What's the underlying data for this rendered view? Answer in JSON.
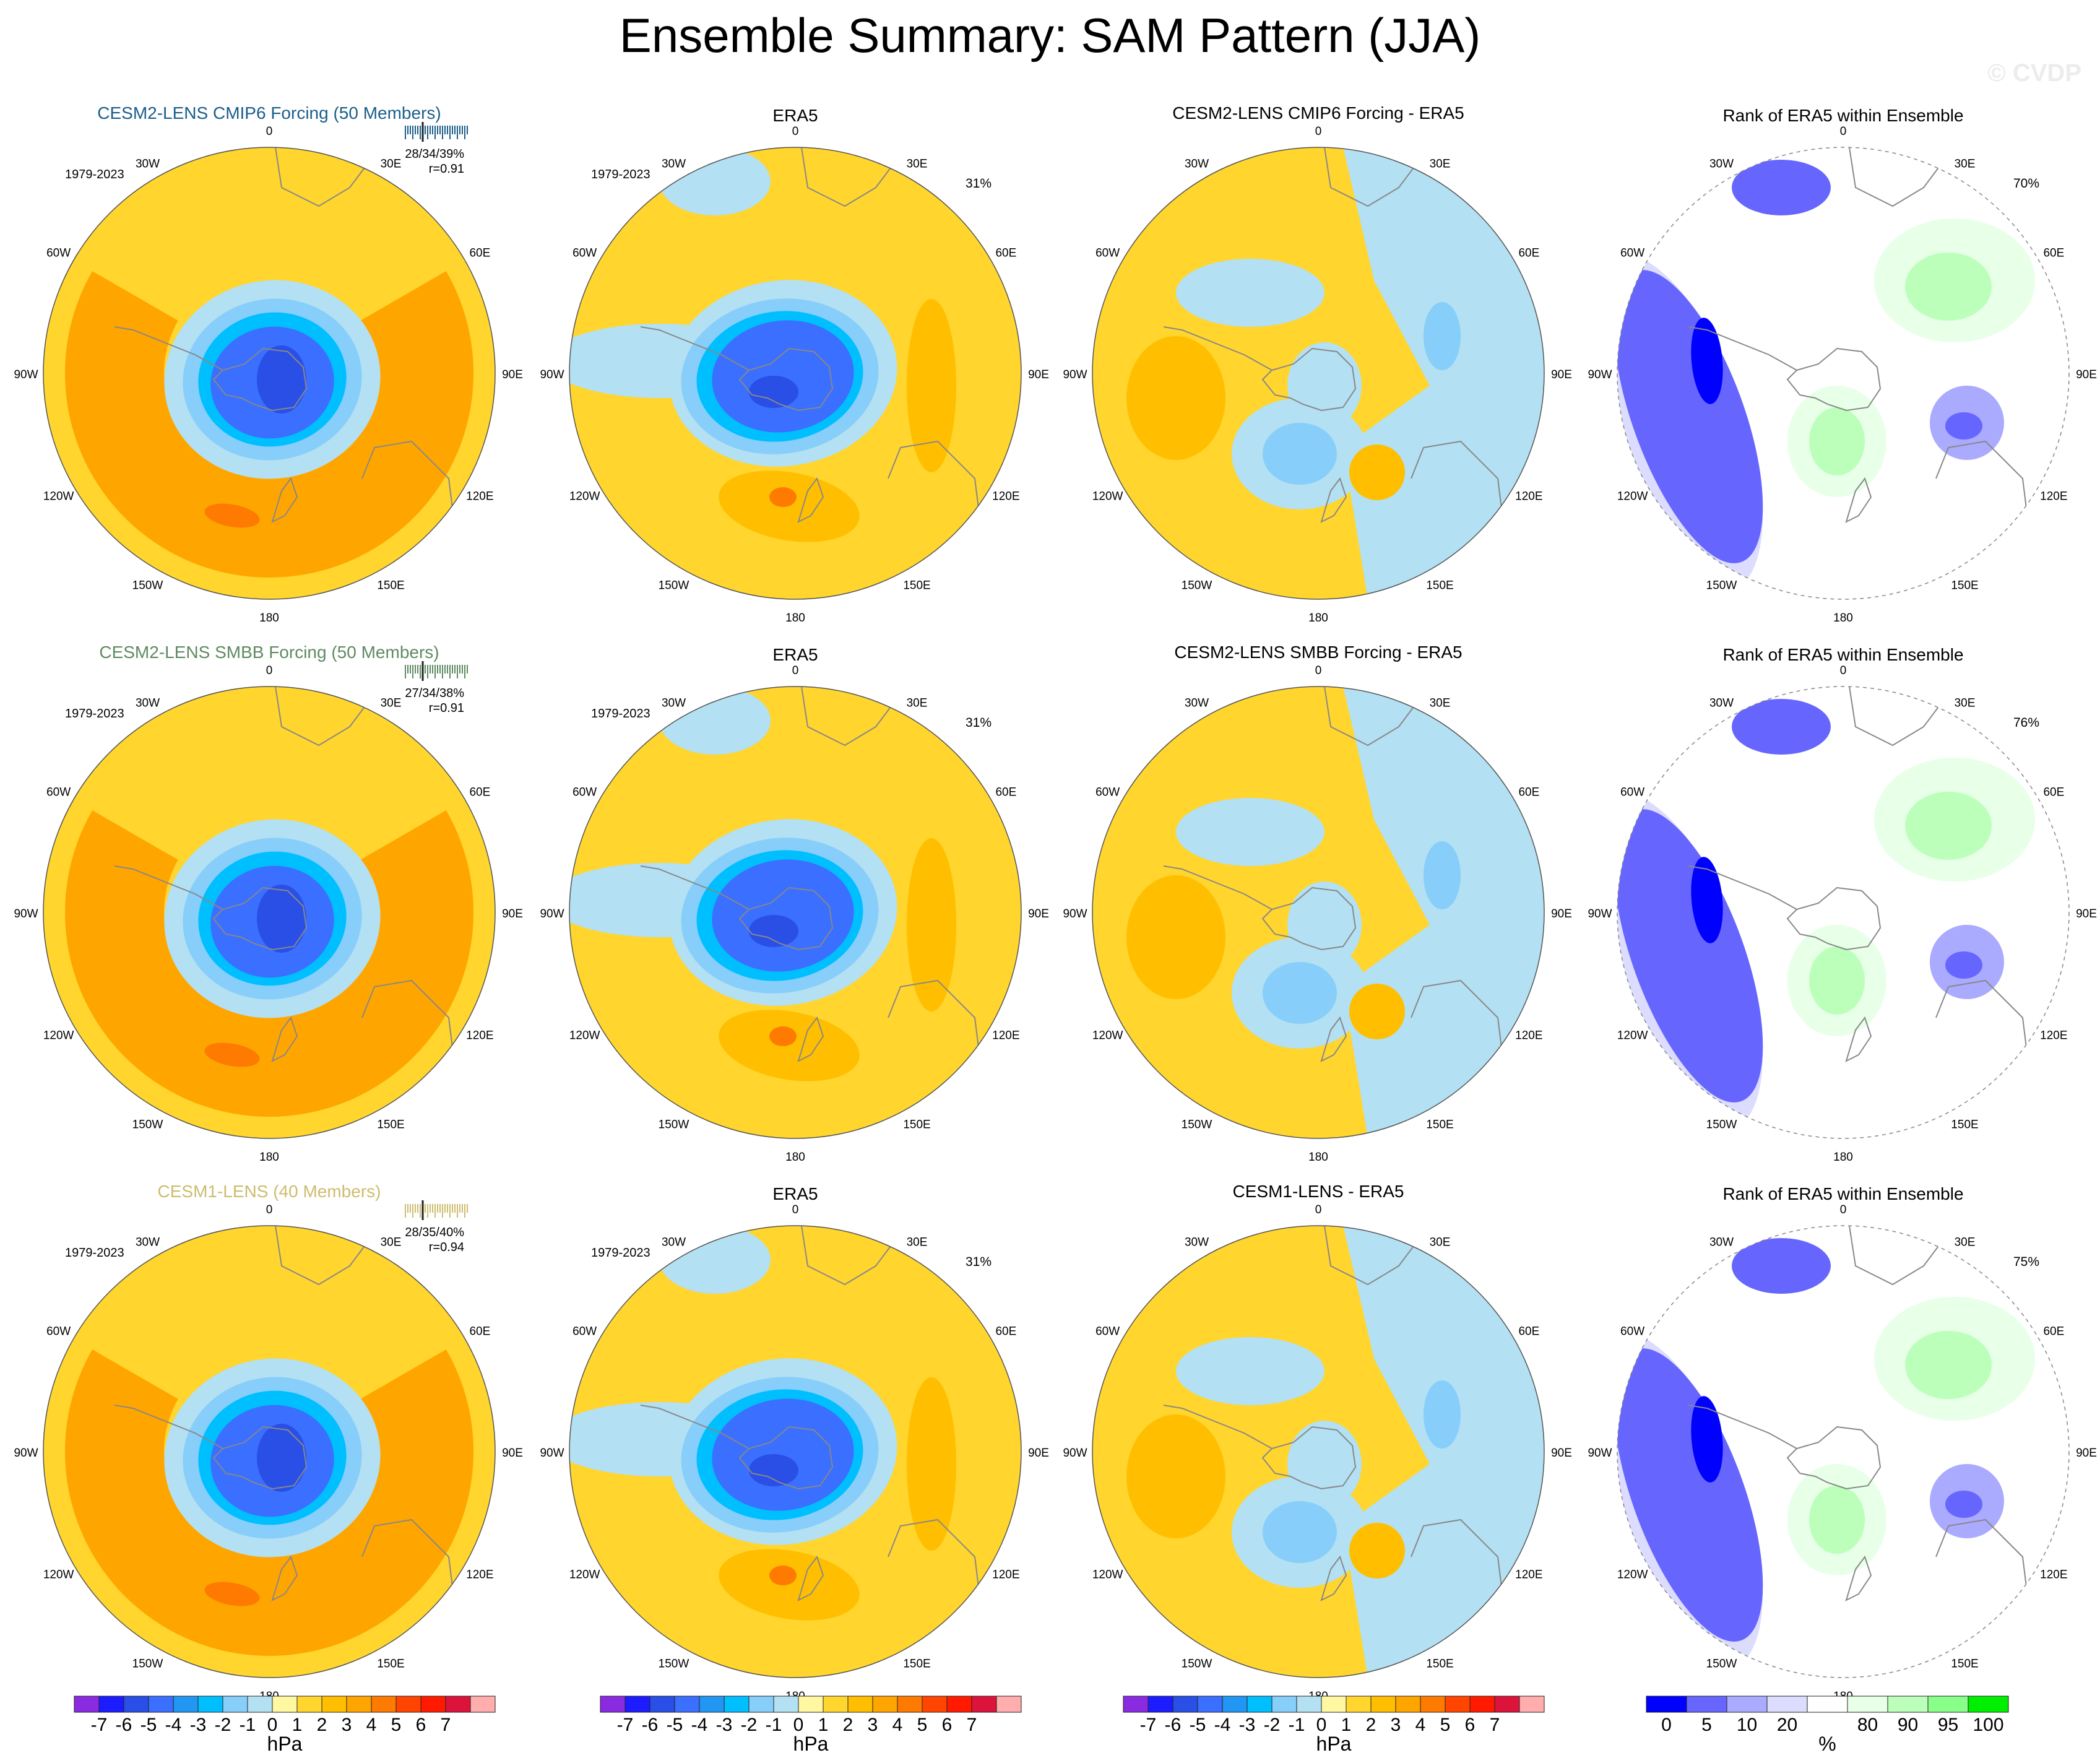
{
  "title": "Ensemble Summary: SAM Pattern (JJA)",
  "watermark": "© CVDP",
  "colors": {
    "hpa_scale": [
      "#8a2be2",
      "#1c1cff",
      "#2a4fe6",
      "#3a6fff",
      "#2196f3",
      "#00bfff",
      "#87cefa",
      "#b3e0f2",
      "#fff8a0",
      "#ffd52e",
      "#ffbf00",
      "#ffa500",
      "#ff7a00",
      "#ff4500",
      "#ff1a00",
      "#dc143c",
      "#ffadad"
    ],
    "rank_scale": [
      "#0000ff",
      "#6666ff",
      "#aaaaff",
      "#dcdcff",
      "#ffffff",
      "#e8ffe8",
      "#bbffbb",
      "#88ff88",
      "#00ee00"
    ],
    "row_title_colors": [
      "#1a5e8a",
      "#5f8a62",
      "#cdbd6e"
    ],
    "continent": "#888888",
    "grid": "#bbbbbb"
  },
  "chart_data": {
    "type": "polar-contour-panels",
    "grid_labels": [
      "0",
      "30E",
      "60E",
      "90E",
      "120E",
      "150E",
      "180",
      "150W",
      "120W",
      "90W",
      "60W",
      "30W"
    ],
    "rows": [
      {
        "model_title": "CESM2-LENS CMIP6 Forcing (50 Members)",
        "years": "1979-2023",
        "pct_text": "28/34/39%",
        "r_text": "r=0.91",
        "model_pattern": {
          "core": -6,
          "ring": 3,
          "ring_peak": 4
        },
        "era5_title": "ERA5",
        "era5_years": "1979-2023",
        "era5_pct": "31%",
        "diff_title": "CESM2-LENS CMIP6 Forcing - ERA5",
        "rank_title": "Rank of ERA5 within Ensemble",
        "rank_pct": "70%"
      },
      {
        "model_title": "CESM2-LENS SMBB Forcing (50 Members)",
        "years": "1979-2023",
        "pct_text": "27/34/38%",
        "r_text": "r=0.91",
        "model_pattern": {
          "core": -6,
          "ring": 3,
          "ring_peak": 4
        },
        "era5_title": "ERA5",
        "era5_years": "1979-2023",
        "era5_pct": "31%",
        "diff_title": "CESM2-LENS SMBB Forcing - ERA5",
        "rank_title": "Rank of ERA5 within Ensemble",
        "rank_pct": "76%"
      },
      {
        "model_title": "CESM1-LENS (40 Members)",
        "years": "1979-2023",
        "pct_text": "28/35/40%",
        "r_text": "r=0.94",
        "model_pattern": {
          "core": -6,
          "ring": 3,
          "ring_peak": 4
        },
        "era5_title": "ERA5",
        "era5_years": "1979-2023",
        "era5_pct": "31%",
        "diff_title": "CESM1-LENS - ERA5",
        "rank_title": "Rank of ERA5 within Ensemble",
        "rank_pct": "75%"
      }
    ],
    "colorbar_hpa": {
      "labels": [
        "-7",
        "-6",
        "-5",
        "-4",
        "-3",
        "-2",
        "-1",
        "0",
        "1",
        "2",
        "3",
        "4",
        "5",
        "6",
        "7"
      ],
      "unit": "hPa"
    },
    "colorbar_rank": {
      "labels": [
        "0",
        "5",
        "10",
        "20",
        "80",
        "90",
        "95",
        "100"
      ],
      "unit": "%"
    }
  }
}
